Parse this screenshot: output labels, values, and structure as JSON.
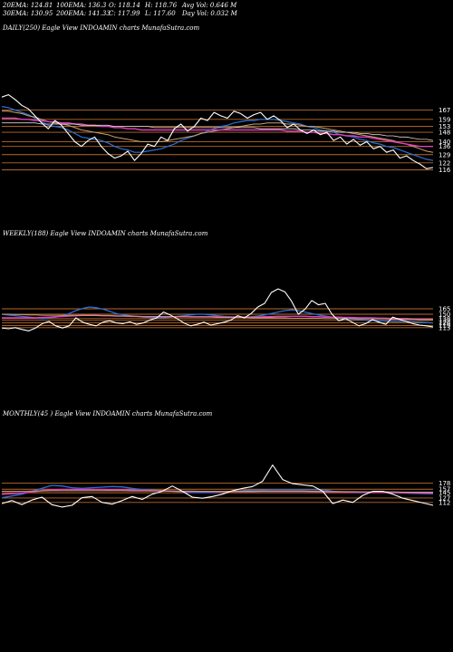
{
  "header": {
    "row1": [
      {
        "key": "ema20",
        "text": "20EMA: 124.81"
      },
      {
        "key": "ema100",
        "text": "100EMA: 136.3"
      },
      {
        "key": "open",
        "text": "O: 118.14"
      },
      {
        "key": "high",
        "text": "H: 118.76"
      },
      {
        "key": "avgvol",
        "text": "Avg Vol: 0.646  M"
      }
    ],
    "row2": [
      {
        "key": "ema30",
        "text": "30EMA: 130.95"
      },
      {
        "key": "ema200",
        "text": "200EMA: 141.33"
      },
      {
        "key": "close",
        "text": "C: 117.99"
      },
      {
        "key": "low",
        "text": "L: 117.60"
      },
      {
        "key": "dayvol",
        "text": "Day Vol: 0.032  M"
      }
    ]
  },
  "colors": {
    "price": "#ffffff",
    "level_line": "#b86a2a",
    "ema_blue": "#2a6fd6",
    "ema_pink": "#e040c0",
    "ema_tan": "#c8a070",
    "ema_white": "#d8d8d8"
  },
  "chart_data": [
    {
      "type": "line",
      "title": "DAILY(250) Eagle  View  INDOAMIN  charts MunafaSutra.com",
      "levels": [
        {
          "label": "167",
          "value": 167
        },
        {
          "label": "159",
          "value": 159
        },
        {
          "label": "153",
          "value": 153
        },
        {
          "label": "148",
          "value": 148
        },
        {
          "label": "140",
          "value": 140
        },
        {
          "label": "136",
          "value": 136
        },
        {
          "label": "129",
          "value": 129
        },
        {
          "label": "122",
          "value": 122
        },
        {
          "label": "116",
          "value": 116
        }
      ],
      "ylim": [
        108,
        182
      ],
      "series": [
        {
          "role": "price",
          "values": [
            178,
            180,
            176,
            171,
            168,
            162,
            156,
            151,
            158,
            154,
            147,
            140,
            136,
            141,
            144,
            136,
            130,
            126,
            128,
            132,
            124,
            130,
            138,
            136,
            144,
            141,
            151,
            155,
            149,
            153,
            160,
            158,
            165,
            162,
            160,
            166,
            164,
            160,
            163,
            165,
            159,
            162,
            158,
            152,
            155,
            150,
            147,
            150,
            146,
            148,
            141,
            144,
            138,
            142,
            137,
            140,
            134,
            136,
            131,
            133,
            126,
            128,
            124,
            121,
            117,
            118
          ]
        },
        {
          "role": "ema20",
          "values": [
            170,
            169,
            167,
            165,
            163,
            160,
            157,
            154,
            153,
            152,
            150,
            147,
            144,
            143,
            142,
            141,
            139,
            136,
            134,
            133,
            131,
            131,
            132,
            133,
            134,
            136,
            138,
            141,
            143,
            145,
            147,
            149,
            151,
            153,
            154,
            156,
            157,
            158,
            158,
            159,
            159,
            159,
            158,
            157,
            156,
            155,
            153,
            152,
            150,
            149,
            148,
            146,
            145,
            144,
            142,
            141,
            139,
            138,
            136,
            135,
            133,
            131,
            129,
            127,
            125,
            124
          ]
        },
        {
          "role": "ema30",
          "values": [
            166,
            166,
            165,
            164,
            162,
            161,
            159,
            157,
            156,
            155,
            154,
            152,
            150,
            149,
            148,
            147,
            146,
            144,
            143,
            142,
            141,
            140,
            140,
            140,
            140,
            141,
            142,
            143,
            144,
            145,
            147,
            148,
            149,
            150,
            151,
            152,
            153,
            154,
            155,
            155,
            156,
            156,
            156,
            155,
            155,
            154,
            153,
            153,
            152,
            151,
            150,
            149,
            148,
            147,
            146,
            145,
            144,
            143,
            142,
            141,
            139,
            138,
            136,
            134,
            132,
            131
          ]
        },
        {
          "role": "ema100",
          "values": [
            160,
            160,
            160,
            159,
            159,
            158,
            158,
            157,
            157,
            156,
            156,
            155,
            155,
            154,
            154,
            153,
            153,
            152,
            152,
            151,
            151,
            150,
            150,
            150,
            150,
            150,
            150,
            150,
            150,
            150,
            150,
            150,
            150,
            150,
            150,
            150,
            150,
            150,
            150,
            150,
            150,
            150,
            150,
            149,
            149,
            149,
            148,
            148,
            147,
            147,
            146,
            146,
            145,
            145,
            144,
            144,
            143,
            142,
            141,
            140,
            139,
            138,
            137,
            136,
            136,
            136
          ]
        },
        {
          "role": "ema200",
          "values": [
            156,
            156,
            156,
            156,
            156,
            156,
            155,
            155,
            155,
            155,
            155,
            155,
            154,
            154,
            154,
            154,
            154,
            153,
            153,
            153,
            153,
            153,
            153,
            152,
            152,
            152,
            152,
            152,
            152,
            152,
            152,
            152,
            152,
            152,
            152,
            152,
            152,
            152,
            152,
            151,
            151,
            151,
            151,
            151,
            151,
            150,
            150,
            150,
            149,
            149,
            149,
            148,
            148,
            148,
            147,
            147,
            146,
            146,
            145,
            145,
            144,
            144,
            143,
            142,
            142,
            141
          ]
        }
      ]
    },
    {
      "type": "line",
      "title": "WEEKLY(188) Eagle  View  INDOAMIN  charts MunafaSutra.com",
      "levels": [
        {
          "label": "165",
          "value": 165
        },
        {
          "label": "150",
          "value": 150
        },
        {
          "label": "138",
          "value": 138
        },
        {
          "label": "133",
          "value": 133
        },
        {
          "label": "126",
          "value": 126
        },
        {
          "label": "119",
          "value": 119
        },
        {
          "label": "113",
          "value": 113
        }
      ],
      "ylim": [
        60,
        250
      ],
      "series": [
        {
          "role": "price",
          "values": [
            112,
            110,
            113,
            108,
            104,
            112,
            124,
            130,
            118,
            112,
            118,
            140,
            128,
            122,
            118,
            128,
            132,
            126,
            124,
            129,
            122,
            126,
            134,
            140,
            156,
            148,
            138,
            126,
            118,
            122,
            128,
            120,
            124,
            128,
            134,
            146,
            140,
            152,
            170,
            180,
            210,
            220,
            212,
            186,
            150,
            164,
            188,
            176,
            180,
            150,
            132,
            138,
            128,
            118,
            124,
            135,
            128,
            122,
            142,
            136,
            130,
            124,
            120,
            118,
            115
          ]
        },
        {
          "role": "ema_a",
          "values": [
            150,
            148,
            146,
            144,
            142,
            140,
            138,
            140,
            142,
            146,
            152,
            160,
            166,
            170,
            168,
            164,
            158,
            152,
            148,
            146,
            144,
            142,
            141,
            140,
            140,
            142,
            144,
            146,
            148,
            150,
            150,
            148,
            146,
            144,
            143,
            142,
            142,
            143,
            145,
            148,
            152,
            156,
            160,
            162,
            160,
            156,
            152,
            148,
            145,
            142,
            140,
            138,
            136,
            135,
            134,
            133,
            132,
            131,
            130,
            130,
            130,
            129,
            128,
            127,
            126
          ]
        },
        {
          "role": "ema_b",
          "values": [
            140,
            140,
            140,
            140,
            140,
            140,
            141,
            142,
            143,
            144,
            145,
            146,
            147,
            147,
            147,
            146,
            146,
            145,
            145,
            144,
            144,
            143,
            143,
            143,
            143,
            143,
            143,
            143,
            143,
            143,
            143,
            143,
            143,
            142,
            142,
            142,
            142,
            142,
            142,
            143,
            143,
            144,
            144,
            144,
            144,
            144,
            143,
            143,
            142,
            142,
            142,
            141,
            141,
            140,
            140,
            140,
            139,
            139,
            138,
            138,
            138,
            137,
            137,
            136,
            136
          ]
        },
        {
          "role": "ema_c",
          "values": [
            150,
            150,
            149,
            149,
            148,
            148,
            147,
            147,
            147,
            147,
            147,
            147,
            147,
            146,
            146,
            146,
            146,
            145,
            145,
            145,
            144,
            144,
            144,
            144,
            143,
            143,
            143,
            143,
            142,
            142,
            142,
            142,
            141,
            141,
            141,
            141,
            141,
            140,
            140,
            140,
            140,
            140,
            140,
            139,
            139,
            139,
            139,
            139,
            138,
            138,
            138,
            138,
            138,
            137,
            137,
            137,
            137,
            137,
            136,
            136,
            136,
            136,
            135,
            135,
            135
          ]
        }
      ]
    },
    {
      "type": "line",
      "title": "MONTHLY(45                            ) Eagle  View  INDOAMIN  charts MunafaSutra.com",
      "levels": [
        {
          "label": "178",
          "value": 178
        },
        {
          "label": "157",
          "value": 157
        },
        {
          "label": "145",
          "value": 145
        },
        {
          "label": "127",
          "value": 127
        },
        {
          "label": "112",
          "value": 112
        }
      ],
      "ylim": [
        40,
        260
      ],
      "series": [
        {
          "role": "price",
          "values": [
            108,
            118,
            104,
            120,
            130,
            104,
            96,
            102,
            128,
            132,
            112,
            106,
            118,
            132,
            122,
            140,
            150,
            168,
            150,
            130,
            126,
            132,
            140,
            152,
            160,
            166,
            184,
            240,
            190,
            176,
            172,
            168,
            150,
            108,
            120,
            112,
            136,
            150,
            150,
            140,
            126,
            118,
            110,
            102
          ]
        },
        {
          "role": "ema_a",
          "values": [
            128,
            134,
            140,
            150,
            160,
            170,
            168,
            162,
            160,
            162,
            164,
            166,
            165,
            160,
            156,
            154,
            152,
            150,
            148,
            146,
            146,
            146,
            148,
            150,
            152,
            154,
            154,
            155,
            155,
            155,
            155,
            155,
            155,
            150,
            148,
            146,
            146,
            146,
            146,
            145,
            144,
            143,
            142,
            141
          ]
        },
        {
          "role": "ema_b",
          "values": [
            140,
            142,
            144,
            148,
            152,
            155,
            156,
            156,
            156,
            156,
            156,
            155,
            155,
            154,
            153,
            152,
            152,
            151,
            150,
            150,
            149,
            149,
            149,
            149,
            149,
            149,
            150,
            150,
            150,
            150,
            150,
            149,
            149,
            148,
            148,
            147,
            147,
            146,
            146,
            146,
            145,
            145,
            144,
            144
          ]
        },
        {
          "role": "ema_c",
          "values": [
            150,
            150,
            150,
            151,
            151,
            152,
            152,
            152,
            152,
            152,
            152,
            152,
            152,
            151,
            151,
            151,
            151,
            150,
            150,
            150,
            150,
            150,
            150,
            150,
            150,
            150,
            150,
            150,
            150,
            150,
            150,
            150,
            149,
            149,
            149,
            149,
            148,
            148,
            148,
            148,
            147,
            147,
            147,
            147
          ]
        }
      ]
    }
  ]
}
